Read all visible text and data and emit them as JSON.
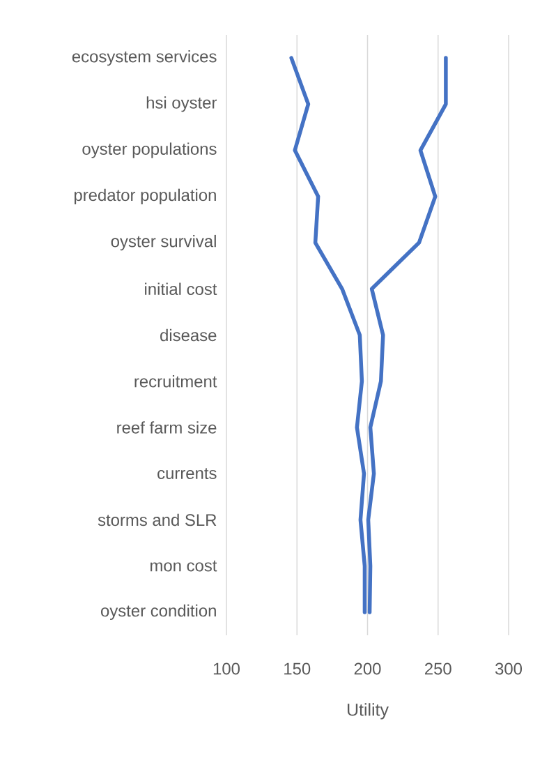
{
  "chart_data": {
    "type": "line",
    "orientation": "horizontal",
    "xlabel": "Utility",
    "categories": [
      "ecosystem services",
      "hsi oyster",
      "oyster populations",
      "predator population",
      "oyster survival",
      "initial cost",
      "disease",
      "recruitment",
      "reef farm size",
      "currents",
      "storms and SLR",
      "mon cost",
      "oyster condition"
    ],
    "series": [
      {
        "color": "#4472c4",
        "values": [
          146,
          158,
          148.5,
          165,
          163,
          182,
          194.5,
          196,
          192.5,
          197.5,
          195,
          198,
          198
        ]
      },
      {
        "color": "#4472c4",
        "values": [
          255.5,
          255.5,
          237.5,
          248,
          236.5,
          203,
          211,
          209.5,
          202,
          204.5,
          200.5,
          202,
          201.5
        ]
      }
    ],
    "xlim": [
      100,
      300
    ],
    "xticks": [
      100,
      150,
      200,
      250,
      300
    ],
    "grid": "x",
    "marker": "none",
    "line_style": "solid"
  }
}
